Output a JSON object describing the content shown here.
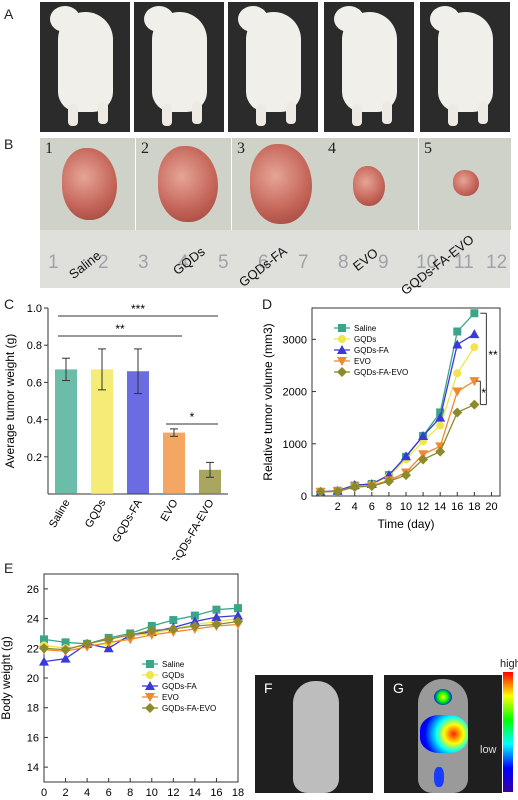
{
  "panels": {
    "a": "A",
    "b": "B",
    "c": "C",
    "d": "D",
    "e": "E",
    "f": "F",
    "g": "G"
  },
  "tumor_numbers": [
    "1",
    "2",
    "3",
    "4",
    "5"
  ],
  "ruler_numbers": [
    "1",
    "2",
    "3",
    "4",
    "5",
    "6",
    "7",
    "8",
    "9",
    "10",
    "11",
    "12"
  ],
  "group_labels": [
    "Saline",
    "GQDs",
    "GQDs-FA",
    "EVO",
    "GQDs-FA-EVO"
  ],
  "fluo_scale": {
    "high": "high",
    "low": "low"
  },
  "colors": {
    "saline": "#3aa58b",
    "gqds": "#f0e54a",
    "gqdsfa": "#3a3ad8",
    "evo": "#f08a2e",
    "gqdsfaevo": "#8c8a2a"
  },
  "chart_data": [
    {
      "id": "C",
      "type": "bar",
      "ylabel": "Average tumor weight (g)",
      "categories": [
        "Saline",
        "GQDs",
        "GQDs-FA",
        "EVO",
        "GQDs-FA-EVO"
      ],
      "values": [
        0.67,
        0.67,
        0.66,
        0.33,
        0.13
      ],
      "errors": [
        0.06,
        0.11,
        0.12,
        0.02,
        0.04
      ],
      "ylim": [
        0,
        1.0
      ],
      "yticks": [
        "0.2",
        "0.4",
        "0.6",
        "0.8",
        "1.0"
      ],
      "significance": [
        "***",
        "**",
        "*"
      ]
    },
    {
      "id": "D",
      "type": "line",
      "xlabel": "Time (day)",
      "ylabel": "Relative tumor volume (mm3)",
      "x": [
        0,
        2,
        4,
        6,
        8,
        10,
        12,
        14,
        16,
        18
      ],
      "xticks": [
        "2",
        "4",
        "6",
        "8",
        "10",
        "12",
        "14",
        "16",
        "18",
        "20"
      ],
      "yticks": [
        "0",
        "1000",
        "2000",
        "3000"
      ],
      "ylim": [
        0,
        3600
      ],
      "series": [
        {
          "name": "Saline",
          "values": [
            80,
            100,
            200,
            230,
            400,
            750,
            1150,
            1600,
            3150,
            3500
          ]
        },
        {
          "name": "GQDs",
          "values": [
            80,
            100,
            190,
            220,
            380,
            700,
            1050,
            1350,
            2350,
            2850
          ]
        },
        {
          "name": "GQDs-FA",
          "values": [
            80,
            100,
            210,
            230,
            400,
            760,
            1150,
            1500,
            2900,
            3100
          ]
        },
        {
          "name": "EVO",
          "values": [
            80,
            90,
            180,
            200,
            300,
            450,
            800,
            950,
            2000,
            2200
          ]
        },
        {
          "name": "GQDs-FA-EVO",
          "values": [
            80,
            90,
            170,
            190,
            280,
            400,
            700,
            850,
            1600,
            1750
          ]
        }
      ],
      "significance": [
        "**",
        "*"
      ]
    },
    {
      "id": "E",
      "type": "line",
      "ylabel": "Body weight (g)",
      "x": [
        0,
        2,
        4,
        6,
        8,
        10,
        12,
        14,
        16,
        18
      ],
      "xticks": [
        "0",
        "2",
        "4",
        "6",
        "8",
        "10",
        "12",
        "14",
        "16",
        "18"
      ],
      "yticks": [
        "14",
        "16",
        "18",
        "20",
        "22",
        "24",
        "26"
      ],
      "ylim": [
        13,
        27
      ],
      "series": [
        {
          "name": "Saline",
          "values": [
            22.6,
            22.4,
            22.3,
            22.7,
            23.0,
            23.5,
            23.9,
            24.2,
            24.6,
            24.7
          ]
        },
        {
          "name": "GQDs",
          "values": [
            22.2,
            22.0,
            22.2,
            22.3,
            22.8,
            23.0,
            23.3,
            23.6,
            23.8,
            24.0
          ]
        },
        {
          "name": "GQDs-FA",
          "values": [
            21.1,
            21.3,
            22.3,
            22.0,
            22.9,
            23.1,
            23.4,
            23.8,
            24.1,
            24.2
          ]
        },
        {
          "name": "EVO",
          "values": [
            21.9,
            21.8,
            22.1,
            22.4,
            22.6,
            22.9,
            23.1,
            23.3,
            23.5,
            23.6
          ]
        },
        {
          "name": "GQDs-FA-EVO",
          "values": [
            22.0,
            21.9,
            22.3,
            22.6,
            22.9,
            23.2,
            23.3,
            23.5,
            23.6,
            23.8
          ]
        }
      ]
    }
  ]
}
